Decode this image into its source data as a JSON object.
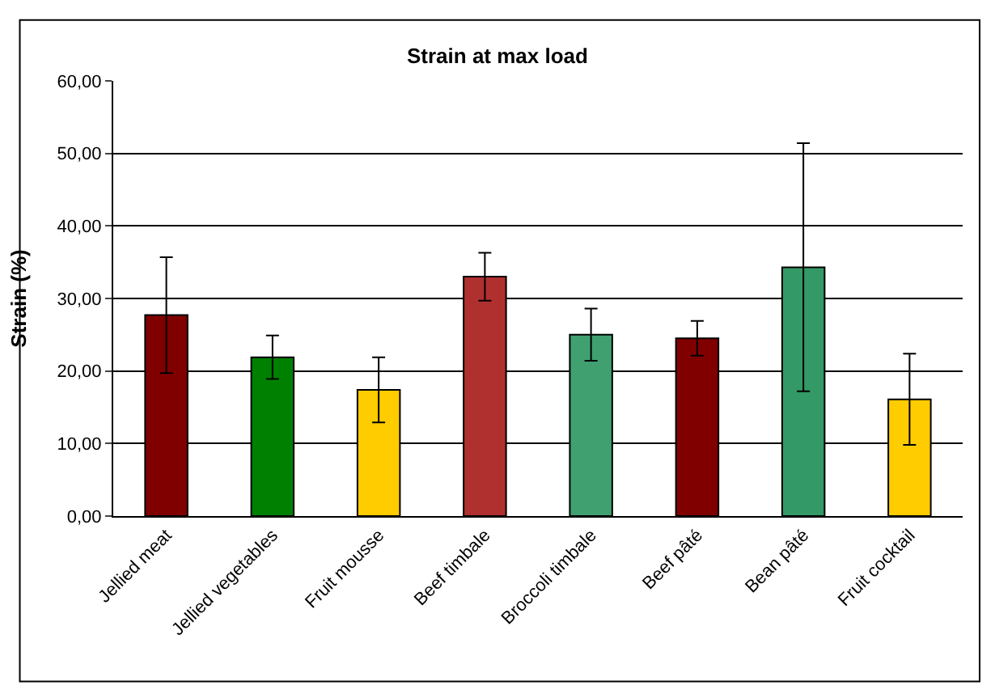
{
  "chart_data": {
    "type": "bar",
    "title": "Strain at max load",
    "ylabel": "Strain (%)",
    "categories": [
      "Jellied meat",
      "Jellied vegetables",
      "Fruit mousse",
      "Beef timbale",
      "Broccoli timbale",
      "Beef pâté",
      "Bean pâté",
      "Fruit cocktail"
    ],
    "values": [
      27.7,
      21.9,
      17.4,
      33.0,
      25.0,
      24.5,
      34.3,
      16.1
    ],
    "errors": [
      8.0,
      3.0,
      4.5,
      3.3,
      3.6,
      2.4,
      17.1,
      6.3
    ],
    "colors": [
      "#800000",
      "#008000",
      "#ffcc00",
      "#b03030",
      "#40a070",
      "#800000",
      "#339966",
      "#ffcc00"
    ],
    "ylim": [
      0,
      60
    ],
    "yticks": [
      {
        "value": 0,
        "label": "0,00"
      },
      {
        "value": 10,
        "label": "10,00"
      },
      {
        "value": 20,
        "label": "20,00"
      },
      {
        "value": 30,
        "label": "30,00"
      },
      {
        "value": 40,
        "label": "40,00"
      },
      {
        "value": 50,
        "label": "50,00"
      },
      {
        "value": 60,
        "label": "60,00"
      }
    ],
    "grid": "y",
    "legend": false
  }
}
